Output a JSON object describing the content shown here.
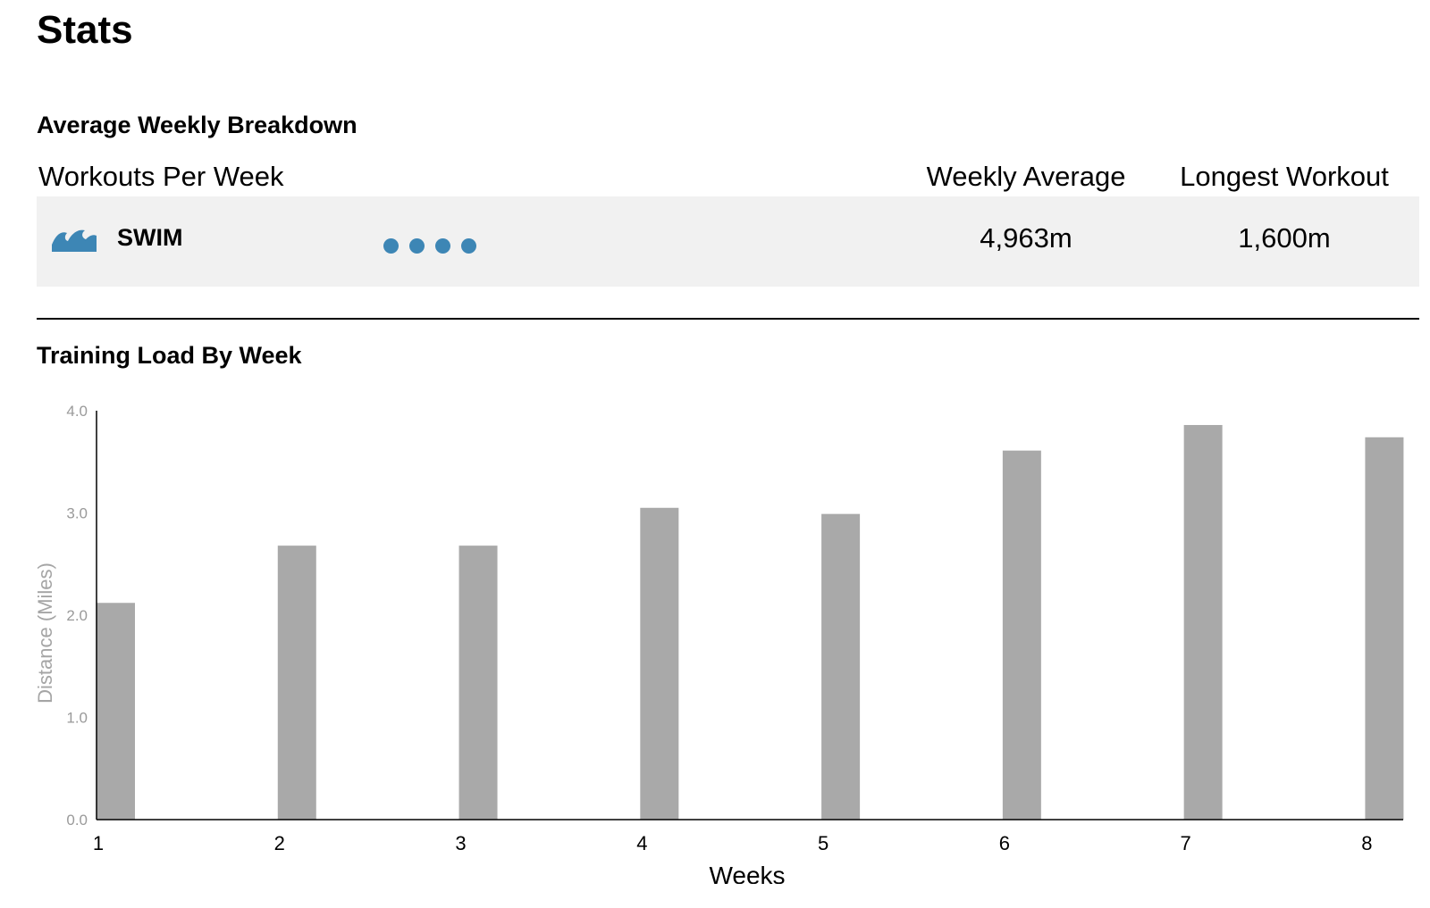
{
  "page": {
    "title": "Stats"
  },
  "breakdown": {
    "title": "Average Weekly Breakdown",
    "headers": {
      "workouts_per_week": "Workouts Per Week",
      "weekly_average": "Weekly Average",
      "longest_workout": "Longest Workout"
    },
    "rows": [
      {
        "sport": "SWIM",
        "icon": "wave-icon",
        "workouts_per_week": 4,
        "weekly_average": "4,963m",
        "longest_workout": "1,600m",
        "color": "#3d86b5"
      }
    ]
  },
  "training_load": {
    "title": "Training Load By Week"
  },
  "chart_data": {
    "type": "bar",
    "categories": [
      "1",
      "2",
      "3",
      "4",
      "5",
      "6",
      "7",
      "8"
    ],
    "values": [
      2.12,
      2.68,
      2.68,
      3.05,
      2.99,
      3.61,
      3.86,
      3.74
    ],
    "title": "",
    "xlabel": "Weeks",
    "ylabel": "Distance (Miles)",
    "ylim": [
      0,
      4
    ],
    "yticks": [
      "0.0",
      "1.0",
      "2.0",
      "3.0",
      "4.0"
    ],
    "grid": false,
    "legend": "none",
    "bar_color": "#a9a9a9"
  }
}
